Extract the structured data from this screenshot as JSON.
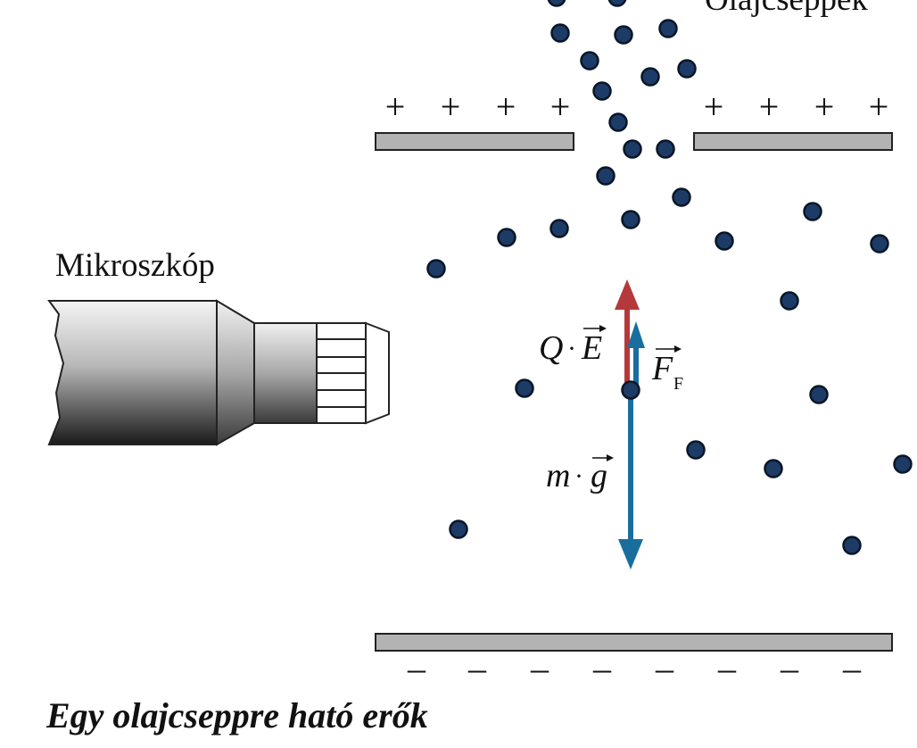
{
  "labels": {
    "microscope": "Mikroszkóp",
    "droplets": "Olajcseppek",
    "caption": "Egy olajcseppre ható erők"
  },
  "forces": {
    "electric": {
      "left": "Q",
      "dot": "·",
      "vec": "E",
      "color": "#b5383a"
    },
    "buoyancy": {
      "main": "F",
      "sub": "F",
      "color": "#1a6e9e"
    },
    "gravity": {
      "left": "m",
      "dot": "·",
      "vec": "g",
      "color": "#1a6e9e"
    }
  },
  "charges": {
    "positive": [
      "+",
      "+",
      "+",
      "+",
      "+",
      "+",
      "+",
      "+"
    ],
    "negative": [
      "–",
      "–",
      "–",
      "–",
      "–",
      "–",
      "–",
      "–"
    ]
  },
  "colors": {
    "droplet_fill": "#1c3b66",
    "plate_fill": "#b3b3b3",
    "plate_stroke": "#222222"
  }
}
